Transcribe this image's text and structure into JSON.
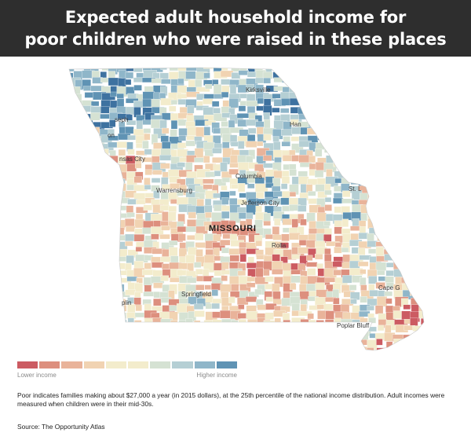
{
  "header": {
    "title_line1": "Expected adult household income for",
    "title_line2": "poor children who were raised in these places"
  },
  "map": {
    "state_label": "MISSOURI",
    "cities": [
      {
        "name": "Kirksville"
      },
      {
        "name": "seph"
      },
      {
        "name": "Han"
      },
      {
        "name": "on"
      },
      {
        "name": "nsas City"
      },
      {
        "name": "Columbia"
      },
      {
        "name": "St. L"
      },
      {
        "name": "Warrensburg"
      },
      {
        "name": "Jefferson City"
      },
      {
        "name": "Rolla"
      },
      {
        "name": "Springfield"
      },
      {
        "name": "plin"
      },
      {
        "name": "Cape G"
      },
      {
        "name": "Poplar Bluff"
      }
    ],
    "colors": {
      "low_dark": "#cc5b62",
      "low": "#dd8f7e",
      "low_light": "#e9b39a",
      "mid_low": "#f1d3b2",
      "mid": "#f3eccc",
      "mid_high": "#d5e2d3",
      "high_light": "#b5cfd4",
      "high": "#8fb6c9",
      "high_dark": "#5f93b4",
      "highest": "#3e72a0"
    }
  },
  "legend": {
    "low_label": "Lower income",
    "high_label": "Higher income",
    "swatches": [
      "#cc5b62",
      "#dd8f7e",
      "#e9b39a",
      "#f1d3b2",
      "#f3eccc",
      "#f3eccc",
      "#d5e2d3",
      "#b5cfd4",
      "#8fb6c9",
      "#5f93b4"
    ]
  },
  "footnote": {
    "text": "Poor indicates families making about $27,000 a year (in 2015 dollars), at the 25th percentile of the national income distribution. Adult incomes were measured when children were in their mid-30s.",
    "source": "Source: The Opportunity Atlas"
  }
}
